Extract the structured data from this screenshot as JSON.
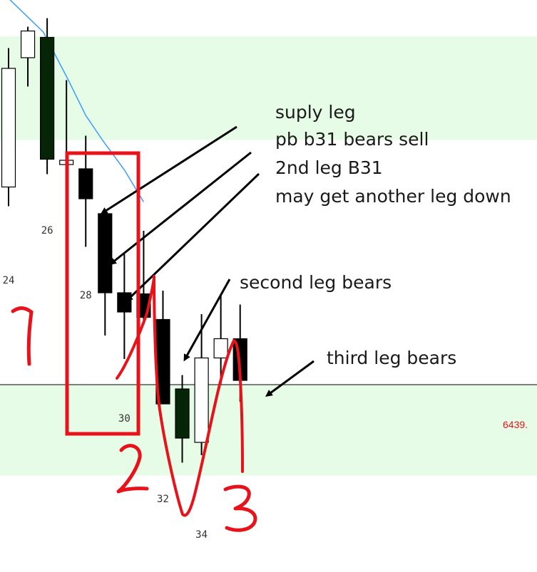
{
  "chart_data": {
    "type": "candlestick",
    "candles": [
      {
        "bar": 24,
        "open": 6458.5,
        "high": 6471.5,
        "low": 6456.7,
        "close": 6469.6
      },
      {
        "bar": 25,
        "open": 6470.6,
        "high": 6473.5,
        "low": 6467.9,
        "close": 6473.1
      },
      {
        "bar": 26,
        "open": 6472.5,
        "high": 6474.3,
        "low": 6459.7,
        "close": 6461.1
      },
      {
        "bar": 27,
        "open": 6460.6,
        "high": 6468.5,
        "low": 6459.2,
        "close": 6461.0
      },
      {
        "bar": 28,
        "open": 6460.2,
        "high": 6463.3,
        "low": 6452.9,
        "close": 6457.4
      },
      {
        "bar": 29,
        "open": 6456.0,
        "high": null,
        "low": 6444.6,
        "close": 6448.6
      },
      {
        "bar": 30,
        "open": 6448.6,
        "high": 6452.2,
        "low": 6442.4,
        "close": 6446.8
      },
      {
        "bar": 31,
        "open": 6448.5,
        "high": 6454.4,
        "low": 6445.6,
        "close": 6446.3
      },
      {
        "bar": 32,
        "open": 6446.1,
        "high": 6448.8,
        "low": 6438.2,
        "close": 6438.2
      },
      {
        "bar": 33,
        "open": 6439.6,
        "high": 6440.9,
        "low": 6432.7,
        "close": 6435.0
      },
      {
        "bar": 34,
        "open": 6434.6,
        "high": 6446.6,
        "low": 6433.4,
        "close": 6442.5
      },
      {
        "bar": 35,
        "open": 6442.5,
        "high": 6448.4,
        "low": 6440.0,
        "close": 6444.3
      },
      {
        "bar": 36,
        "open": 6444.3,
        "high": 6447.5,
        "low": 6438.4,
        "close": 6440.4
      }
    ],
    "x_tick_labels": [
      "24",
      "26",
      "28",
      "30",
      "32",
      "34"
    ],
    "price_label": "6439.",
    "price_line": 6440.0,
    "ylim": [
      6431.0,
      6476.0
    ],
    "ema_line": [
      {
        "x": 23.8,
        "y": 6476.5
      },
      {
        "x": 25.8,
        "y": 6473.0
      },
      {
        "x": 27.1,
        "y": 6468.5
      },
      {
        "x": 28.0,
        "y": 6465.2
      },
      {
        "x": 28.9,
        "y": 6462.8
      },
      {
        "x": 30.0,
        "y": 6460.1
      },
      {
        "x": 31.0,
        "y": 6457.1
      }
    ],
    "zones": [
      {
        "kind": "supply",
        "y_top": 6472.6,
        "y_bottom": 6462.9,
        "color": "#e6fce6"
      },
      {
        "kind": "demand",
        "y_top": 6440.0,
        "y_bottom": 6431.5,
        "color": "#e6fce6"
      }
    ],
    "colors": {
      "bear_body": "#000000",
      "bear_dark_body": "#062406",
      "bull_body": "#ffffff",
      "wick": "#000000",
      "ema": "#3b9cff",
      "price_line": "#333333",
      "price_label": "#e8121b",
      "annotation_red": "#e8121b"
    }
  },
  "annotations": {
    "supply_leg": "suply leg",
    "pb_b31": "pb b31 bears sell",
    "second_leg_b31": "2nd leg B31",
    "another_leg": "may get another leg down",
    "second_leg_bears": "second leg bears",
    "third_leg_bears": "third leg bears"
  },
  "handwritten_marks": [
    "1",
    "2",
    "3"
  ]
}
